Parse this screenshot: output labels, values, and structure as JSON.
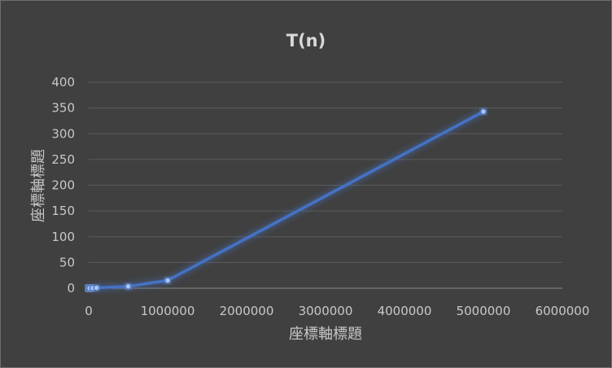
{
  "chart_data": {
    "type": "line",
    "title": "T(n)",
    "xlabel": "座標軸標題",
    "ylabel": "座標軸標題",
    "xlim": [
      0,
      6000000
    ],
    "ylim": [
      0,
      400
    ],
    "x_ticks": [
      0,
      1000000,
      2000000,
      3000000,
      4000000,
      5000000,
      6000000
    ],
    "y_ticks": [
      0,
      50,
      100,
      150,
      200,
      250,
      300,
      350,
      400
    ],
    "grid": "horizontal",
    "legend": "none",
    "series": [
      {
        "color": "#4472c4",
        "marker": "circle",
        "x": [
          10,
          100,
          1000,
          10000,
          50000,
          100000,
          500000,
          1000000,
          5000000
        ],
        "y": [
          0,
          0,
          0,
          0.1,
          0.3,
          0.7,
          3.5,
          15,
          343
        ]
      }
    ]
  }
}
